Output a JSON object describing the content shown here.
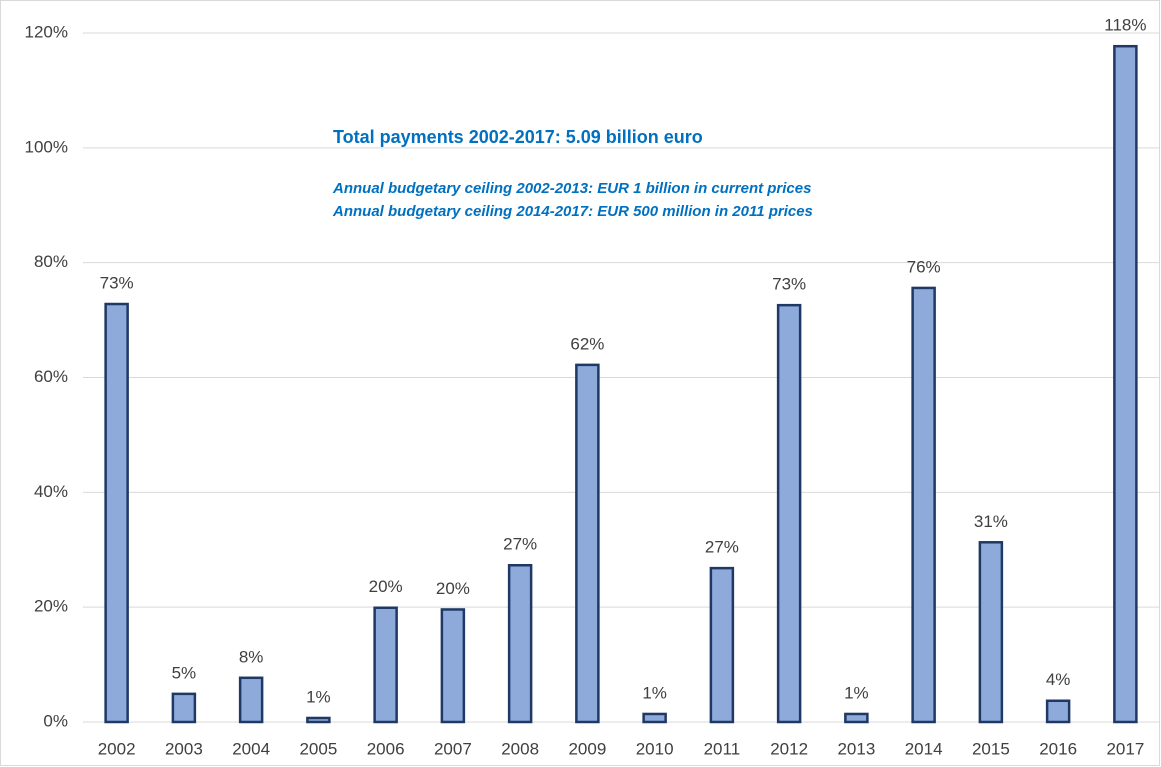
{
  "chart_data": {
    "type": "bar",
    "annotations": [
      "Total payments 2002-2017: 5.09 billion euro",
      "Annual budgetary ceiling 2002-2013: EUR 1 billion in current prices",
      "Annual budgetary ceiling 2014-2017: EUR 500 million in 2011 prices"
    ],
    "categories": [
      "2002",
      "2003",
      "2004",
      "2005",
      "2006",
      "2007",
      "2008",
      "2009",
      "2010",
      "2011",
      "2012",
      "2013",
      "2014",
      "2015",
      "2016",
      "2017"
    ],
    "values": [
      72.8,
      4.9,
      7.7,
      0.7,
      19.9,
      19.6,
      27.3,
      62.2,
      1.4,
      26.8,
      72.6,
      1.4,
      75.6,
      31.3,
      3.7,
      117.7
    ],
    "value_labels": [
      "73%",
      "5%",
      "8%",
      "1%",
      "20%",
      "20%",
      "27%",
      "62%",
      "1%",
      "27%",
      "73%",
      "1%",
      "76%",
      "31%",
      "4%",
      "118%"
    ],
    "color": "#8eaadb",
    "edge_color": "#1f3864",
    "ylim": [
      0,
      120
    ],
    "yticks": [
      {
        "value": 0,
        "label": "0%"
      },
      {
        "value": 20,
        "label": "20%"
      },
      {
        "value": 40,
        "label": "40%"
      },
      {
        "value": 60,
        "label": "60%"
      },
      {
        "value": 80,
        "label": "80%"
      },
      {
        "value": 100,
        "label": "100%"
      },
      {
        "value": 120,
        "label": "120%"
      }
    ],
    "grid": true
  }
}
